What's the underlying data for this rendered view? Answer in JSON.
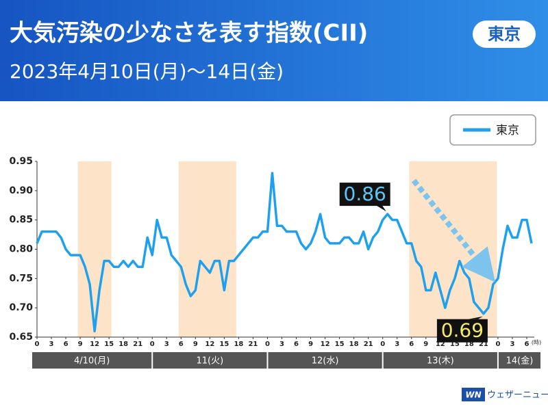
{
  "header": {
    "title": "大気汚染の少なさを表す指数(CII)",
    "badge": "東京",
    "subtitle": "2023年4月10日(月)〜14日(金)"
  },
  "brand": {
    "logo": "WN",
    "name": "ウェザーニュース"
  },
  "chart_data": {
    "type": "line",
    "x": [
      0,
      1,
      2,
      3,
      4,
      5,
      6,
      7,
      8,
      9,
      10,
      11,
      12,
      13,
      14,
      15,
      16,
      17,
      18,
      19,
      20,
      21,
      22,
      23,
      24,
      25,
      26,
      27,
      28,
      29,
      30,
      31,
      32,
      33,
      34,
      35,
      36,
      37,
      38,
      39,
      40,
      41,
      42,
      43,
      44,
      45,
      46,
      47,
      48,
      49,
      50,
      51,
      52,
      53,
      54,
      55,
      56,
      57,
      58,
      59,
      60,
      61,
      62,
      63,
      64,
      65,
      66,
      67,
      68,
      69,
      70,
      71,
      72,
      73,
      74,
      75,
      76,
      77,
      78,
      79,
      80,
      81,
      82,
      83,
      84,
      85,
      86,
      87,
      88,
      89,
      90,
      91,
      92,
      93,
      94,
      95,
      96,
      97,
      98,
      99,
      100,
      101,
      102,
      103
    ],
    "series": [
      {
        "name": "東京",
        "color": "#1ea0ef",
        "values": [
          0.81,
          0.83,
          0.83,
          0.83,
          0.83,
          0.82,
          0.8,
          0.79,
          0.79,
          0.79,
          0.77,
          0.74,
          0.66,
          0.73,
          0.78,
          0.78,
          0.77,
          0.77,
          0.78,
          0.77,
          0.78,
          0.77,
          0.77,
          0.82,
          0.79,
          0.85,
          0.82,
          0.82,
          0.79,
          0.78,
          0.77,
          0.74,
          0.72,
          0.73,
          0.78,
          0.77,
          0.76,
          0.78,
          0.78,
          0.73,
          0.78,
          0.78,
          0.79,
          0.8,
          0.81,
          0.82,
          0.82,
          0.83,
          0.83,
          0.93,
          0.84,
          0.84,
          0.83,
          0.83,
          0.83,
          0.81,
          0.8,
          0.81,
          0.83,
          0.86,
          0.82,
          0.81,
          0.81,
          0.81,
          0.82,
          0.82,
          0.81,
          0.81,
          0.83,
          0.8,
          0.82,
          0.83,
          0.85,
          0.86,
          0.85,
          0.85,
          0.83,
          0.81,
          0.81,
          0.78,
          0.77,
          0.73,
          0.73,
          0.76,
          0.73,
          0.7,
          0.73,
          0.75,
          0.78,
          0.76,
          0.75,
          0.71,
          0.7,
          0.69,
          0.7,
          0.74,
          0.75,
          0.8,
          0.84,
          0.82,
          0.82,
          0.85,
          0.85,
          0.81
        ]
      }
    ],
    "xlim": [
      0,
      103
    ],
    "xticks": [
      0,
      3,
      6,
      9,
      12,
      15,
      18,
      21,
      {
        "value": 24,
        "label": "0"
      },
      {
        "value": 27,
        "label": "3"
      },
      {
        "value": 30,
        "label": "6"
      },
      {
        "value": 33,
        "label": "9"
      },
      {
        "value": 36,
        "label": "12"
      },
      {
        "value": 39,
        "label": "15"
      },
      {
        "value": 42,
        "label": "18"
      },
      {
        "value": 45,
        "label": "21"
      },
      {
        "value": 48,
        "label": "0"
      },
      {
        "value": 51,
        "label": "3"
      },
      {
        "value": 54,
        "label": "6"
      },
      {
        "value": 57,
        "label": "9"
      },
      {
        "value": 60,
        "label": "12"
      },
      {
        "value": 63,
        "label": "15"
      },
      {
        "value": 66,
        "label": "18"
      },
      {
        "value": 69,
        "label": "21"
      },
      {
        "value": 72,
        "label": "0"
      },
      {
        "value": 75,
        "label": "3"
      },
      {
        "value": 78,
        "label": "6"
      },
      {
        "value": 81,
        "label": "9"
      },
      {
        "value": 84,
        "label": "12"
      },
      {
        "value": 87,
        "label": "15"
      },
      {
        "value": 90,
        "label": "18"
      },
      {
        "value": 93,
        "label": "21"
      },
      {
        "value": 96,
        "label": "0"
      },
      {
        "value": 99,
        "label": "3"
      },
      {
        "value": 102,
        "label": "6"
      }
    ],
    "x_unit": "(時)",
    "days": [
      "4/10(月)",
      "11(火)",
      "12(水)",
      "13(木)",
      "14(金)"
    ],
    "ylim": [
      0.65,
      0.95
    ],
    "yticks": [
      0.65,
      {
        "value": 0.7,
        "label": "0.70"
      },
      0.75,
      {
        "value": 0.8,
        "label": "0.80"
      },
      0.85,
      {
        "value": 0.9,
        "label": "0.90"
      },
      0.95
    ],
    "shaded_ranges": [
      [
        8.5,
        15.5
      ],
      [
        29.5,
        41.5
      ],
      [
        77.5,
        95.8
      ]
    ],
    "shade_color": "#fde3c8",
    "annotations": [
      {
        "text": "0.86",
        "x": 73,
        "y": 0.86,
        "color": "#5ec6f5"
      },
      {
        "text": "0.69",
        "x": 93,
        "y": 0.69,
        "color": "#f7ea6a"
      }
    ],
    "legend": "top-right",
    "grid": false
  }
}
